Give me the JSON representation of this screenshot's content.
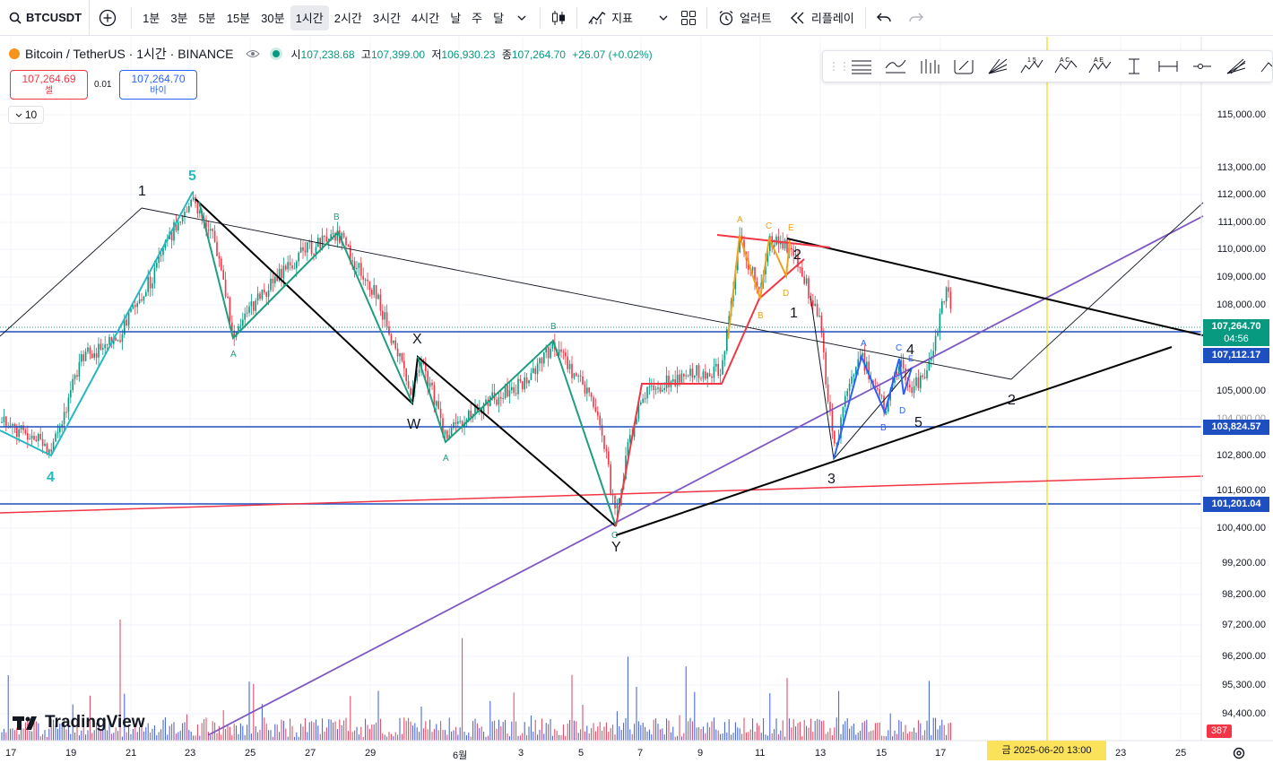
{
  "toolbar": {
    "symbol": "BTCUSDT",
    "intervals": [
      "1분",
      "3분",
      "5분",
      "15분",
      "30분",
      "1시간",
      "2시간",
      "3시간",
      "4시간",
      "날",
      "주",
      "달"
    ],
    "active_interval": "1시간",
    "indicators_label": "지표",
    "alert_label": "얼러트",
    "replay_label": "리플레이"
  },
  "legend": {
    "title": "Bitcoin / TetherUS · 1시간 · BINANCE",
    "open_label": "시",
    "open": "107,238.68",
    "high_label": "고",
    "high": "107,399.00",
    "low_label": "저",
    "low": "106,930.23",
    "close_label": "종",
    "close": "107,264.70",
    "change": "+26.07 (+0.02%)"
  },
  "trade": {
    "sell_price": "107,264.69",
    "sell_label": "셀",
    "spread": "0.01",
    "buy_price": "107,264.70",
    "buy_label": "바이"
  },
  "collapse_count": "10",
  "price_axis": [
    "115,000.00",
    "113,000.00",
    "112,000.00",
    "111,000.00",
    "110,000.00",
    "109,000.00",
    "108,000.00",
    "105,000.00",
    "104,000.00",
    "102,800.00",
    "101,600.00",
    "100,400.00",
    "99,200.00",
    "98,200.00",
    "97,200.00",
    "96,200.00",
    "95,300.00",
    "94,400.00"
  ],
  "price_labels": {
    "current": "107,264.70",
    "countdown": "04:56",
    "line1": "107,112.17",
    "line2": "103,824.57",
    "line3": "101,201.04"
  },
  "time_axis": [
    "17",
    "19",
    "21",
    "23",
    "25",
    "27",
    "29",
    "6월",
    "3",
    "5",
    "7",
    "9",
    "11",
    "13",
    "15",
    "17",
    "23",
    "25"
  ],
  "date_label": "금 2025-06-20   13:00",
  "volume_label": "387",
  "brand": "TradingView",
  "wave_labels": {
    "n1a": "1",
    "n5a": "5",
    "n4a": "4",
    "A1": "A",
    "B1": "B",
    "X": "X",
    "W": "W",
    "A2": "A",
    "B2": "B",
    "Y": "Y",
    "C2": "C",
    "oA": "A",
    "oB": "B",
    "oC": "C",
    "oD": "D",
    "oE": "E",
    "n2b": "2",
    "n1b": "1",
    "n3": "3",
    "n4b": "4",
    "n5b": "5",
    "n2c": "2",
    "bA": "A",
    "bB": "B",
    "bC": "C",
    "bD": "D",
    "bE": "E"
  },
  "colors": {
    "teal": "#26b8c0",
    "green": "#1f9e7f",
    "red": "#f23645",
    "blue": "#1e4fc0",
    "purple": "#7e57c2",
    "yellow": "#f5e23a",
    "orange": "#f0a11a"
  }
}
